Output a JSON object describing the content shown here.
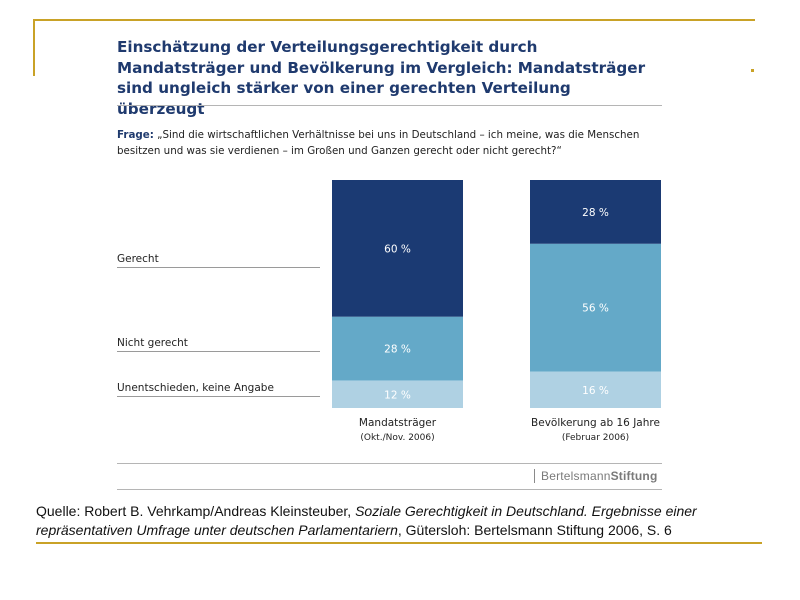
{
  "title": "Einschätzung der Verteilungsgerechtigkeit durch Mandatsträger und Bevölkerung im Vergleich: Mandatsträger sind ungleich stärker von einer gerechten Verteilung überzeugt",
  "question": {
    "label": "Frage:",
    "text": "„Sind die wirtschaftlichen Verhältnisse bei uns in Deutschland – ich meine, was die Menschen besitzen und was sie verdienen – im Großen und Ganzen gerecht oder nicht gerecht?“"
  },
  "brand": {
    "part1": "Bertelsmann",
    "part2": "Stiftung"
  },
  "source": {
    "prefix": "Quelle: Robert B. Vehrkamp/Andreas Kleinsteuber, ",
    "title_italic": "Soziale Gerechtigkeit in Deutschland. Ergebnisse einer repräsentativen Umfrage unter deutschen Parlamentariern",
    "suffix": ", Gütersloh: Bertelsmann Stiftung 2006, S. 6"
  },
  "colors": {
    "gerecht": "#1b3a73",
    "nicht_gerecht": "#64a9c8",
    "unentschieden": "#afd1e3",
    "frame": "#c9a227",
    "title": "#1f3a6e"
  },
  "chart_data": {
    "type": "bar",
    "stacked": true,
    "percent": true,
    "categories": [
      "Mandatsträger",
      "Bevölkerung ab 16 Jahre"
    ],
    "category_notes": [
      "(Okt./Nov. 2006)",
      "(Februar 2006)"
    ],
    "series": [
      {
        "name": "Gerecht",
        "values": [
          60,
          28
        ],
        "labels": [
          "60 %",
          "28 %"
        ]
      },
      {
        "name": "Nicht gerecht",
        "values": [
          28,
          56
        ],
        "labels": [
          "28 %",
          "56 %"
        ]
      },
      {
        "name": "Unentschieden, keine Angabe",
        "values": [
          12,
          16
        ],
        "labels": [
          "12 %",
          "16 %"
        ]
      }
    ],
    "ylim": [
      0,
      100
    ],
    "grid": false,
    "legend": "left"
  }
}
